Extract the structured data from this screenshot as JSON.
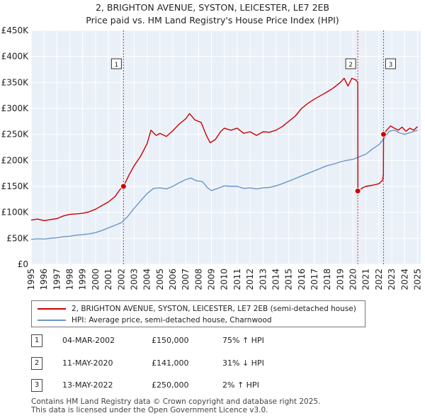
{
  "title_line1": "2, BRIGHTON AVENUE, SYSTON, LEICESTER, LE7 2EB",
  "title_line2": "Price paid vs. HM Land Registry's House Price Index (HPI)",
  "colors": {
    "property": "#cc0000",
    "hpi": "#6b95c8",
    "background": "#eaf0f8",
    "grid": "#ffffff",
    "marker_line": "#cc0000"
  },
  "chart_data": {
    "type": "line",
    "title": "2, BRIGHTON AVENUE, SYSTON, LEICESTER, LE7 2EB — Price paid vs. HM Land Registry's House Price Index (HPI)",
    "xlim": [
      1995,
      2025.25
    ],
    "ylim": [
      0,
      450000
    ],
    "y_ticks": [
      0,
      50000,
      100000,
      150000,
      200000,
      250000,
      300000,
      350000,
      400000,
      450000
    ],
    "y_tick_labels": [
      "£0",
      "£50K",
      "£100K",
      "£150K",
      "£200K",
      "£250K",
      "£300K",
      "£350K",
      "£400K",
      "£450K"
    ],
    "x_ticks": [
      1995,
      1996,
      1997,
      1998,
      1999,
      2000,
      2001,
      2002,
      2003,
      2004,
      2005,
      2006,
      2007,
      2008,
      2009,
      2010,
      2011,
      2012,
      2013,
      2014,
      2015,
      2016,
      2017,
      2018,
      2019,
      2020,
      2021,
      2022,
      2023,
      2024,
      2025
    ],
    "x_tick_labels": [
      "1995",
      "1996",
      "1997",
      "1998",
      "1999",
      "2000",
      "2001",
      "2002",
      "2003",
      "2004",
      "2005",
      "2006",
      "2007",
      "2008",
      "2009",
      "2010",
      "2011",
      "2012",
      "2013",
      "2014",
      "2015",
      "2016",
      "2017",
      "2018",
      "2019",
      "2020",
      "2021",
      "2022",
      "2023",
      "2024",
      "2025"
    ],
    "grid": true,
    "series": [
      {
        "name": "2, BRIGHTON AVENUE, SYSTON, LEICESTER, LE7 2EB (semi-detached house)",
        "color": "#cc0000",
        "points": [
          [
            1995.0,
            85000
          ],
          [
            1995.5,
            87000
          ],
          [
            1996.0,
            84000
          ],
          [
            1996.5,
            86000
          ],
          [
            1997.0,
            88000
          ],
          [
            1997.5,
            93000
          ],
          [
            1998.0,
            96000
          ],
          [
            1998.5,
            97000
          ],
          [
            1999.0,
            98000
          ],
          [
            1999.5,
            101000
          ],
          [
            2000.0,
            106000
          ],
          [
            2000.5,
            113000
          ],
          [
            2001.0,
            120000
          ],
          [
            2001.5,
            130000
          ],
          [
            2001.9,
            144000
          ],
          [
            2002.17,
            150000
          ],
          [
            2002.6,
            172000
          ],
          [
            2003.0,
            190000
          ],
          [
            2003.5,
            208000
          ],
          [
            2004.0,
            232000
          ],
          [
            2004.3,
            258000
          ],
          [
            2004.7,
            248000
          ],
          [
            2005.0,
            252000
          ],
          [
            2005.5,
            246000
          ],
          [
            2006.0,
            257000
          ],
          [
            2006.5,
            270000
          ],
          [
            2007.0,
            280000
          ],
          [
            2007.3,
            290000
          ],
          [
            2007.7,
            278000
          ],
          [
            2008.2,
            273000
          ],
          [
            2008.6,
            248000
          ],
          [
            2008.9,
            234000
          ],
          [
            2009.3,
            240000
          ],
          [
            2009.7,
            255000
          ],
          [
            2010.0,
            262000
          ],
          [
            2010.5,
            258000
          ],
          [
            2011.0,
            262000
          ],
          [
            2011.5,
            252000
          ],
          [
            2012.0,
            255000
          ],
          [
            2012.5,
            248000
          ],
          [
            2013.0,
            255000
          ],
          [
            2013.5,
            254000
          ],
          [
            2014.0,
            258000
          ],
          [
            2014.5,
            265000
          ],
          [
            2015.0,
            275000
          ],
          [
            2015.5,
            285000
          ],
          [
            2016.0,
            300000
          ],
          [
            2016.5,
            310000
          ],
          [
            2017.0,
            318000
          ],
          [
            2017.5,
            325000
          ],
          [
            2018.0,
            332000
          ],
          [
            2018.5,
            340000
          ],
          [
            2019.0,
            350000
          ],
          [
            2019.3,
            358000
          ],
          [
            2019.6,
            343000
          ],
          [
            2019.9,
            358000
          ],
          [
            2020.2,
            355000
          ],
          [
            2020.36,
            350000
          ],
          [
            2020.37,
            141000
          ],
          [
            2020.5,
            143000
          ],
          [
            2020.8,
            148000
          ],
          [
            2021.0,
            150000
          ],
          [
            2021.5,
            152000
          ],
          [
            2022.0,
            155000
          ],
          [
            2022.3,
            162000
          ],
          [
            2022.35,
            175000
          ],
          [
            2022.36,
            250000
          ],
          [
            2022.6,
            258000
          ],
          [
            2022.9,
            266000
          ],
          [
            2023.2,
            262000
          ],
          [
            2023.5,
            258000
          ],
          [
            2023.8,
            264000
          ],
          [
            2024.1,
            256000
          ],
          [
            2024.4,
            262000
          ],
          [
            2024.7,
            258000
          ],
          [
            2025.0,
            265000
          ]
        ]
      },
      {
        "name": "HPI: Average price, semi-detached house, Charnwood",
        "color": "#6b95c8",
        "points": [
          [
            1995.0,
            48000
          ],
          [
            1995.5,
            49000
          ],
          [
            1996.0,
            48500
          ],
          [
            1996.5,
            50000
          ],
          [
            1997.0,
            51000
          ],
          [
            1997.5,
            53000
          ],
          [
            1998.0,
            54000
          ],
          [
            1998.5,
            56000
          ],
          [
            1999.0,
            57000
          ],
          [
            1999.5,
            58500
          ],
          [
            2000.0,
            61000
          ],
          [
            2000.5,
            65000
          ],
          [
            2001.0,
            70000
          ],
          [
            2001.5,
            75000
          ],
          [
            2002.0,
            80000
          ],
          [
            2002.5,
            92000
          ],
          [
            2003.0,
            108000
          ],
          [
            2003.5,
            122000
          ],
          [
            2004.0,
            136000
          ],
          [
            2004.5,
            146000
          ],
          [
            2005.0,
            147000
          ],
          [
            2005.5,
            145000
          ],
          [
            2006.0,
            150000
          ],
          [
            2006.5,
            157000
          ],
          [
            2007.0,
            163000
          ],
          [
            2007.4,
            166000
          ],
          [
            2007.8,
            161000
          ],
          [
            2008.3,
            159000
          ],
          [
            2008.7,
            147000
          ],
          [
            2009.0,
            142000
          ],
          [
            2009.5,
            146000
          ],
          [
            2010.0,
            151000
          ],
          [
            2010.5,
            150000
          ],
          [
            2011.0,
            150000
          ],
          [
            2011.5,
            146000
          ],
          [
            2012.0,
            147000
          ],
          [
            2012.5,
            145000
          ],
          [
            2013.0,
            147000
          ],
          [
            2013.5,
            148000
          ],
          [
            2014.0,
            151000
          ],
          [
            2014.5,
            155000
          ],
          [
            2015.0,
            160000
          ],
          [
            2015.5,
            165000
          ],
          [
            2016.0,
            170000
          ],
          [
            2016.5,
            175000
          ],
          [
            2017.0,
            180000
          ],
          [
            2017.5,
            185000
          ],
          [
            2018.0,
            190000
          ],
          [
            2018.5,
            193000
          ],
          [
            2019.0,
            197000
          ],
          [
            2019.5,
            200000
          ],
          [
            2020.0,
            202000
          ],
          [
            2020.5,
            207000
          ],
          [
            2021.0,
            212000
          ],
          [
            2021.5,
            222000
          ],
          [
            2022.0,
            230000
          ],
          [
            2022.4,
            242000
          ],
          [
            2022.8,
            256000
          ],
          [
            2023.2,
            258000
          ],
          [
            2023.6,
            253000
          ],
          [
            2024.0,
            250000
          ],
          [
            2024.5,
            254000
          ],
          [
            2025.0,
            258000
          ]
        ]
      }
    ],
    "sales": [
      {
        "label": "1",
        "x": 2002.17,
        "y": 150000
      },
      {
        "label": "2",
        "x": 2020.36,
        "y": 141000
      },
      {
        "label": "3",
        "x": 2022.36,
        "y": 250000
      }
    ]
  },
  "legend": {
    "property_label": "2, BRIGHTON AVENUE, SYSTON, LEICESTER, LE7 2EB (semi-detached house)",
    "hpi_label": "HPI: Average price, semi-detached house, Charnwood"
  },
  "transactions": [
    {
      "num": "1",
      "date": "04-MAR-2002",
      "price": "£150,000",
      "hpi": "75% ↑ HPI"
    },
    {
      "num": "2",
      "date": "11-MAY-2020",
      "price": "£141,000",
      "hpi": "31% ↓ HPI"
    },
    {
      "num": "3",
      "date": "13-MAY-2022",
      "price": "£250,000",
      "hpi": "2% ↑ HPI"
    }
  ],
  "footer_line1": "Contains HM Land Registry data © Crown copyright and database right 2025.",
  "footer_line2": "This data is licensed under the Open Government Licence v3.0."
}
